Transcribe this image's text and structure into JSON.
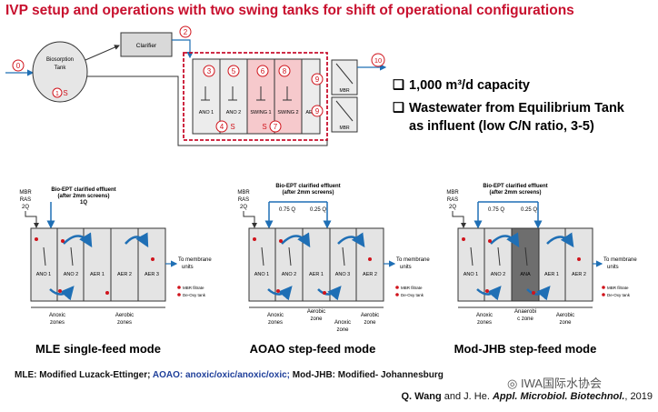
{
  "title": "IVP setup and operations with two swing tanks for shift of operational configurations",
  "top_diagram": {
    "biosorption_label": "Biosorption Tank",
    "clarifier_label": "Clarifier",
    "labels": {
      "ano1": "ANO 1",
      "ano2": "ANO 2",
      "swing1": "SWING 1",
      "swing2": "SWING 2",
      "aer": "AER",
      "mbr": "MBR"
    },
    "numbers": {
      "n0": "0",
      "n1": "1",
      "n2": "2",
      "n3": "3",
      "n4": "4",
      "n5": "5",
      "n6": "6",
      "n7": "7",
      "n8": "8",
      "n9": "9",
      "n10": "10",
      "s": "S"
    }
  },
  "bullets": [
    {
      "box": "❑",
      "text": "1,000 m³/d capacity"
    },
    {
      "box": "❑",
      "text": "Wastewater from Equilibrium Tank"
    },
    {
      "box": "",
      "text": "as influent (low C/N ratio, 3-5)"
    }
  ],
  "panels": {
    "common": {
      "influent": "Bio-EPT clarified effluent",
      "screens": "(after 2mm screens)",
      "mbr": "MBR",
      "ras": "RAS",
      "q2": "2Q",
      "to_membrane": "To membrane",
      "units": "units",
      "legend_filtrate": "MBR filtrate",
      "legend_deoxy": "De-Oxy tank",
      "anoxic": "Anoxic",
      "aerobic": "Aerobic",
      "zones": "zones",
      "zone": "zone"
    },
    "mle": {
      "q": "1Q",
      "tanks": [
        "ANO 1",
        "ANO 2",
        "AER 1",
        "AER 2",
        "AER 3"
      ],
      "mode": "MLE single-feed mode"
    },
    "aoao": {
      "q1": "0.75 Q",
      "q2": "0.25 Q",
      "tanks": [
        "ANO 1",
        "ANO 2",
        "AER 1",
        "ANO 3",
        "AER 2"
      ],
      "mode": "AOAO step-feed mode"
    },
    "jhb": {
      "q1": "0.75 Q",
      "q2": "0.25 Q",
      "tanks": [
        "ANO 1",
        "ANO 2",
        "ANA",
        "AER 1",
        "AER 2"
      ],
      "anaerobic": "Anaerobi",
      "anaerobic2": "c zone",
      "mode": "Mod-JHB step-feed mode"
    }
  },
  "footnote": {
    "part1": "MLE: Modified Luzack-Ettinger;",
    "part2": " AOAO: anoxic/oxic/anoxic/oxic;",
    "part3": " Mod-JHB: Modified- Johannesburg"
  },
  "citation": {
    "authors": "Q. Wang",
    "rest": " and J. He. ",
    "journal": "Appl. Microbiol. Biotechnol.",
    "year": ", 2019"
  },
  "watermark": "IWA国际水协会",
  "colors": {
    "title_red": "#c8102e",
    "arrow_blue": "#1f6fb5",
    "mode_blue": "#1f3f9a",
    "swing_pink": "#f6c9cc",
    "dot_red": "#d0141c"
  }
}
